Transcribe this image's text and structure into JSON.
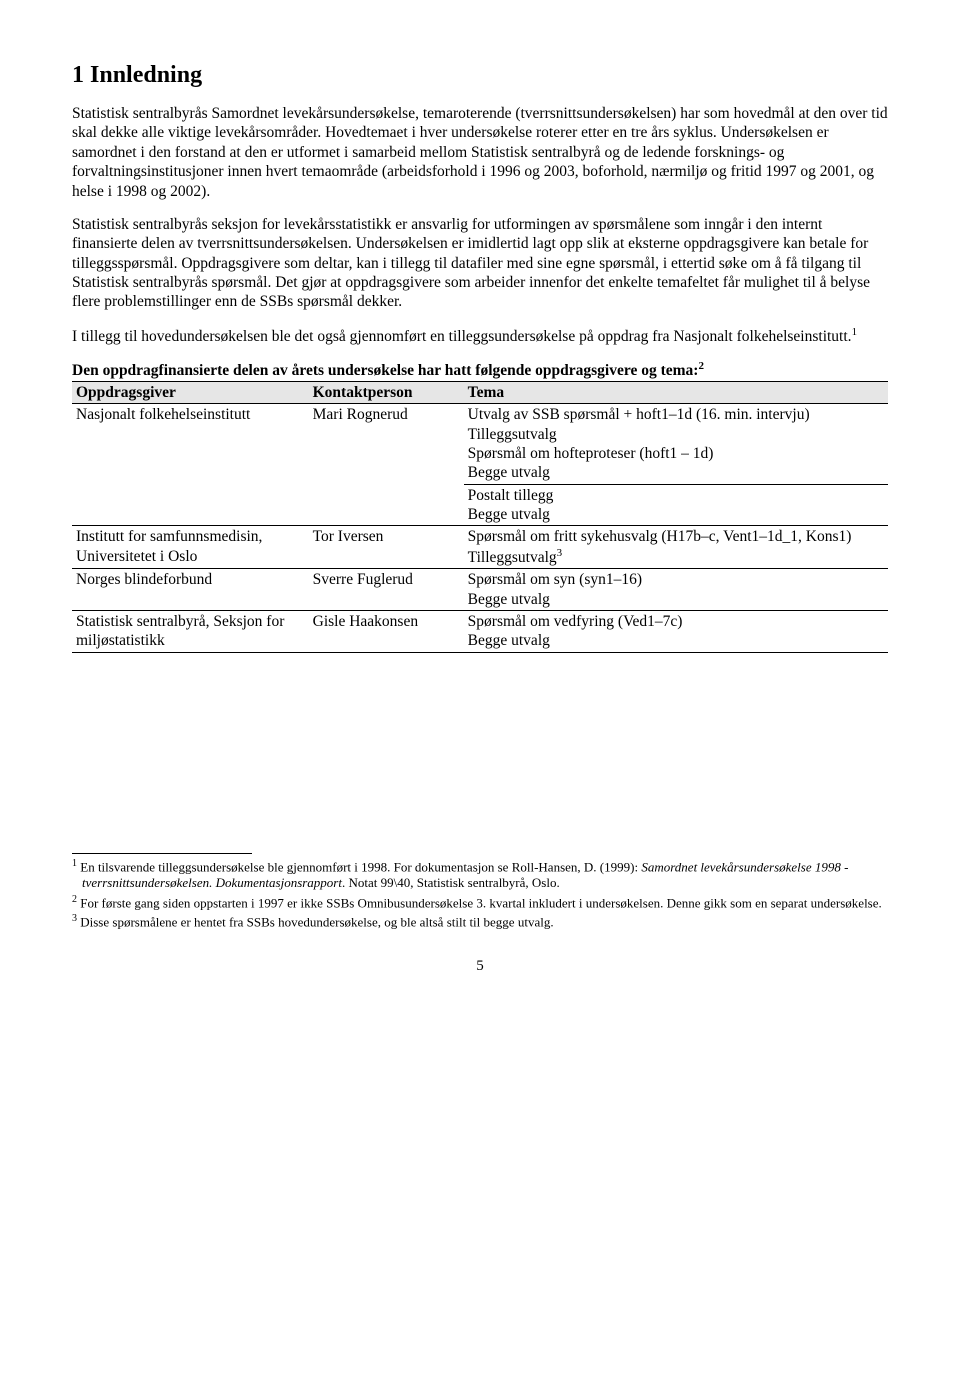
{
  "heading": "1  Innledning",
  "para1": "Statistisk sentralbyrås Samordnet levekårsundersøkelse, temaroterende (tverrsnittsundersøkelsen) har som hovedmål at den over tid skal dekke alle viktige levekårsområder. Hovedtemaet i hver undersøkelse roterer etter en tre års syklus. Undersøkelsen er samordnet i den forstand at den er utformet i samarbeid mellom Statistisk sentralbyrå og de ledende forsknings- og forvaltningsinstitusjoner innen hvert temaområde (arbeidsforhold i 1996 og 2003, boforhold, nærmiljø og fritid 1997 og 2001, og helse i 1998 og 2002).",
  "para2": "Statistisk sentralbyrås seksjon for levekårsstatistikk er ansvarlig for utformingen av spørsmålene som inngår i den internt finansierte delen av tverrsnittsundersøkelsen. Undersøkelsen er imidlertid lagt opp slik at eksterne oppdragsgivere kan betale for tilleggsspørsmål. Oppdragsgivere som deltar, kan i tillegg til datafiler med sine egne spørsmål, i ettertid søke om å få tilgang til Statistisk sentralbyrås spørsmål. Det gjør at oppdragsgivere som arbeider innenfor det enkelte temafeltet får mulighet til å belyse flere problemstillinger enn de SSBs spørsmål dekker.",
  "para3_a": "I tillegg til hovedundersøkelsen ble det også gjennomført en tilleggsundersøkelse på oppdrag fra Nasjonalt folkehelseinstitutt.",
  "para3_sup": "1",
  "table_lead_a": "Den oppdragfinansierte delen av årets undersøkelse har hatt følgende oppdragsgivere og tema:",
  "table_lead_sup": "2",
  "table": {
    "headers": [
      "Oppdragsgiver",
      "Kontaktperson",
      "Tema"
    ],
    "rows": [
      {
        "oppdrag": "Nasjonalt folkehelseinstitutt",
        "kontakt": "Mari Rognerud",
        "tema_top": "Utvalg av SSB spørsmål + hoft1–1d (16. min. intervju)\nTilleggsutvalg\nSpørsmål om hofteproteser (hoft1 – 1d)\nBegge utvalg",
        "tema_bot": "Postalt tillegg\nBegge utvalg"
      },
      {
        "oppdrag": "Institutt for samfunnsmedisin, Universitetet i Oslo",
        "kontakt": "Tor Iversen",
        "tema_a": "Spørsmål om fritt sykehusvalg (H17b–c, Vent1–1d_1, Kons1)\nTilleggsutvalg",
        "tema_sup": "3"
      },
      {
        "oppdrag": "Norges blindeforbund",
        "kontakt": "Sverre Fuglerud",
        "tema": "Spørsmål om syn (syn1–16)\nBegge utvalg"
      },
      {
        "oppdrag": "Statistisk sentralbyrå, Seksjon for miljøstatistikk",
        "kontakt": "Gisle Haakonsen",
        "tema": "Spørsmål om vedfyring (Ved1–7c)\nBegge utvalg"
      }
    ]
  },
  "footnotes": {
    "f1_sup": "1",
    "f1_a": " En tilsvarende tilleggsundersøkelse ble gjennomført i 1998. For dokumentasjon se Roll-Hansen, D. (1999): ",
    "f1_i": "Samordnet levekårsundersøkelse 1998 - tverrsnittsundersøkelsen. Dokumentasjonsrapport",
    "f1_b": ". Notat 99\\40, Statistisk sentralbyrå, Oslo.",
    "f2_sup": "2",
    "f2": " For første gang siden oppstarten i 1997 er ikke SSBs Omnibusundersøkelse 3. kvartal inkludert i undersøkelsen. Denne gikk som en separat undersøkelse.",
    "f3_sup": "3",
    "f3": " Disse spørsmålene er hentet fra SSBs hovedundersøkelse, og ble altså stilt til begge utvalg."
  },
  "page_number": "5"
}
